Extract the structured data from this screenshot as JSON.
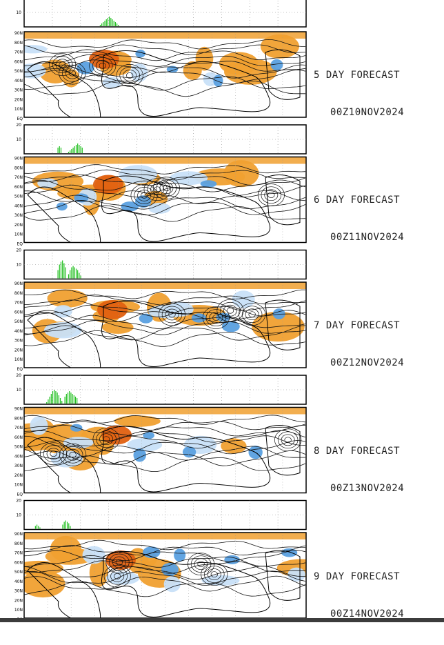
{
  "chart_data": [
    {
      "type": "bar",
      "forecast_day": "5",
      "label_line1": "5 DAY FORECAST",
      "label_line2": "00Z10NOV2024",
      "bar_axis": {
        "ylim": [
          0,
          20
        ],
        "ticks": [
          "20",
          "10"
        ]
      },
      "bars": [
        1,
        2,
        3,
        4,
        5,
        6,
        7,
        6,
        5,
        4,
        3,
        2,
        1
      ],
      "bar_start_fraction": 0.27,
      "map_lat_labels": [
        "90N",
        "80N",
        "70N",
        "60N",
        "50N",
        "40N",
        "30N",
        "20N",
        "10N",
        "EQ"
      ],
      "anomaly_colors": {
        "positive": "#f0a030",
        "strong_positive": "#e06010",
        "negative": "#5aa0e0",
        "weak_negative": "#c8e0f8"
      }
    },
    {
      "type": "bar",
      "forecast_day": "6",
      "label_line1": "6 DAY FORECAST",
      "label_line2": "00Z11NOV2024",
      "bar_axis": {
        "ylim": [
          0,
          20
        ],
        "ticks": [
          "20",
          "10"
        ]
      },
      "bars": [
        4,
        5,
        4,
        0,
        0,
        0,
        0,
        1,
        2,
        3,
        4,
        5,
        6,
        7,
        6,
        5,
        4
      ],
      "bar_start_fraction": 0.12,
      "map_lat_labels": [
        "90N",
        "80N",
        "70N",
        "60N",
        "50N",
        "40N",
        "30N",
        "20N",
        "10N",
        "EQ"
      ],
      "anomaly_colors": {
        "positive": "#f0a030",
        "strong_positive": "#e06010",
        "negative": "#5aa0e0",
        "weak_negative": "#c8e0f8"
      }
    },
    {
      "type": "bar",
      "forecast_day": "7",
      "label_line1": "7 DAY FORECAST",
      "label_line2": "00Z12NOV2024",
      "bar_axis": {
        "ylim": [
          0,
          20
        ],
        "ticks": [
          "20",
          "10"
        ]
      },
      "bars": [
        6,
        10,
        12,
        13,
        11,
        8,
        0,
        3,
        6,
        8,
        9,
        8,
        7,
        6,
        4,
        2
      ],
      "bar_start_fraction": 0.12,
      "map_lat_labels": [
        "90N",
        "80N",
        "70N",
        "60N",
        "50N",
        "40N",
        "30N",
        "20N",
        "10N",
        "EQ"
      ],
      "anomaly_colors": {
        "positive": "#f0a030",
        "strong_positive": "#e06010",
        "negative": "#5aa0e0",
        "weak_negative": "#c8e0f8"
      }
    },
    {
      "type": "bar",
      "forecast_day": "8",
      "label_line1": "8 DAY FORECAST",
      "label_line2": "00Z13NOV2024",
      "bar_axis": {
        "ylim": [
          0,
          20
        ],
        "ticks": [
          "20",
          "10"
        ]
      },
      "bars": [
        1,
        3,
        5,
        7,
        9,
        10,
        9,
        8,
        6,
        4,
        2,
        0,
        5,
        7,
        8,
        9,
        8,
        7,
        6,
        5,
        4
      ],
      "bar_start_fraction": 0.08,
      "map_lat_labels": [
        "90N",
        "80N",
        "70N",
        "60N",
        "50N",
        "40N",
        "30N",
        "20N",
        "10N",
        "EQ"
      ],
      "anomaly_colors": {
        "positive": "#f0a030",
        "strong_positive": "#e06010",
        "negative": "#5aa0e0",
        "weak_negative": "#c8e0f8"
      }
    },
    {
      "type": "bar",
      "forecast_day": "9",
      "label_line1": "9 DAY FORECAST",
      "label_line2": "00Z14NOV2024",
      "bar_axis": {
        "ylim": [
          0,
          20
        ],
        "ticks": [
          "20",
          "10"
        ]
      },
      "bars": [
        2,
        3,
        2,
        1,
        0,
        0,
        0,
        0,
        0,
        0,
        0,
        0,
        0,
        0,
        0,
        0,
        0,
        0,
        3,
        5,
        6,
        5,
        4,
        2
      ],
      "bar_start_fraction": 0.04,
      "map_lat_labels": [
        "90N",
        "80N",
        "70N",
        "60N",
        "50N",
        "40N",
        "30N",
        "20N",
        "10N",
        "EQ"
      ],
      "anomaly_colors": {
        "positive": "#f0a030",
        "strong_positive": "#e06010",
        "negative": "#5aa0e0",
        "weak_negative": "#c8e0f8"
      }
    }
  ]
}
